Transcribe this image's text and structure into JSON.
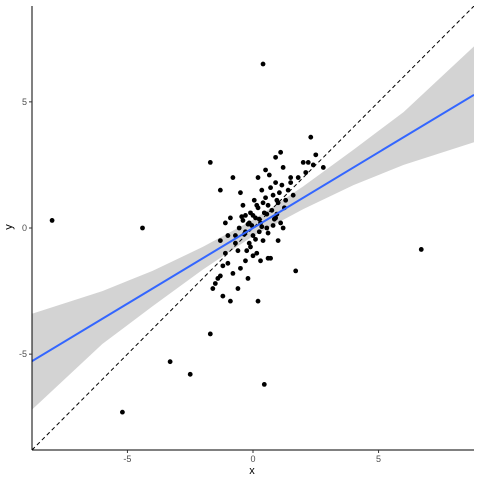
{
  "chart_data": {
    "type": "scatter",
    "xlabel": "x",
    "ylabel": "y",
    "xlim": [
      -8.8,
      8.8
    ],
    "ylim": [
      -8.8,
      8.8
    ],
    "x_ticks": [
      -5,
      0,
      5
    ],
    "y_ticks": [
      -5,
      0,
      5
    ],
    "x_tick_labels": [
      "-5",
      "0",
      "5"
    ],
    "y_tick_labels": [
      "-5",
      "0",
      "5"
    ],
    "grid": false,
    "legend": "none",
    "points": [
      [
        -8.0,
        0.3
      ],
      [
        -4.4,
        0.0
      ],
      [
        -5.2,
        -7.3
      ],
      [
        -3.3,
        -5.3
      ],
      [
        -2.5,
        -5.8
      ],
      [
        -1.7,
        -4.2
      ],
      [
        6.7,
        -0.85
      ],
      [
        0.4,
        6.5
      ],
      [
        0.45,
        -6.2
      ],
      [
        1.7,
        -1.7
      ],
      [
        -1.7,
        2.6
      ],
      [
        -1.3,
        1.5
      ],
      [
        -0.8,
        2.0
      ],
      [
        -0.5,
        1.4
      ],
      [
        -0.4,
        0.3
      ],
      [
        -0.35,
        -0.25
      ],
      [
        -0.3,
        0.5
      ],
      [
        -0.25,
        -0.9
      ],
      [
        -0.2,
        0.15
      ],
      [
        -0.15,
        -0.6
      ],
      [
        -0.1,
        0.6
      ],
      [
        -0.05,
        0.1
      ],
      [
        0.0,
        -0.3
      ],
      [
        0.05,
        1.1
      ],
      [
        0.1,
        0.4
      ],
      [
        0.15,
        -1.0
      ],
      [
        0.2,
        0.8
      ],
      [
        0.25,
        -0.15
      ],
      [
        0.3,
        0.2
      ],
      [
        0.35,
        1.5
      ],
      [
        0.4,
        -0.5
      ],
      [
        0.45,
        0.6
      ],
      [
        0.5,
        1.2
      ],
      [
        0.55,
        0.0
      ],
      [
        0.6,
        0.9
      ],
      [
        0.65,
        2.1
      ],
      [
        0.7,
        -1.2
      ],
      [
        0.75,
        0.7
      ],
      [
        0.8,
        1.3
      ],
      [
        0.85,
        0.35
      ],
      [
        0.9,
        1.8
      ],
      [
        0.95,
        0.55
      ],
      [
        1.0,
        1.0
      ],
      [
        1.05,
        1.4
      ],
      [
        1.1,
        0.2
      ],
      [
        1.15,
        1.7
      ],
      [
        1.2,
        2.4
      ],
      [
        1.25,
        0.8
      ],
      [
        1.3,
        1.1
      ],
      [
        1.4,
        1.5
      ],
      [
        1.5,
        2.0
      ],
      [
        1.6,
        1.3
      ],
      [
        1.1,
        3.0
      ],
      [
        0.9,
        2.8
      ],
      [
        0.5,
        2.3
      ],
      [
        0.2,
        2.0
      ],
      [
        0.7,
        1.6
      ],
      [
        2.0,
        2.6
      ],
      [
        2.1,
        2.2
      ],
      [
        2.2,
        2.6
      ],
      [
        2.3,
        3.6
      ],
      [
        2.4,
        2.5
      ],
      [
        2.5,
        2.9
      ],
      [
        2.8,
        2.4
      ],
      [
        -1.0,
        -0.3
      ],
      [
        -1.1,
        -1.0
      ],
      [
        -1.2,
        -1.5
      ],
      [
        -1.3,
        -0.5
      ],
      [
        -1.4,
        -2.0
      ],
      [
        -1.5,
        -2.2
      ],
      [
        -1.6,
        -2.4
      ],
      [
        -1.2,
        -2.7
      ],
      [
        -0.9,
        -2.9
      ],
      [
        -0.6,
        -2.4
      ],
      [
        -0.8,
        -1.8
      ],
      [
        -0.5,
        -1.6
      ],
      [
        -0.3,
        -1.3
      ],
      [
        -0.2,
        -2.0
      ],
      [
        0.0,
        -1.1
      ],
      [
        0.3,
        -1.3
      ],
      [
        0.2,
        -2.9
      ],
      [
        0.6,
        -1.2
      ],
      [
        1.0,
        -0.5
      ],
      [
        -0.6,
        -0.9
      ],
      [
        -0.7,
        -0.6
      ],
      [
        -0.9,
        0.4
      ],
      [
        -1.0,
        -1.4
      ],
      [
        -1.3,
        -1.9
      ],
      [
        -0.4,
        0.9
      ],
      [
        0.0,
        0.5
      ],
      [
        0.1,
        -0.45
      ],
      [
        -0.15,
        0.2
      ],
      [
        0.35,
        0.05
      ],
      [
        0.6,
        -0.2
      ],
      [
        0.8,
        0.1
      ],
      [
        -0.55,
        0.0
      ],
      [
        -0.7,
        -0.3
      ],
      [
        0.15,
        0.9
      ],
      [
        1.2,
        0.0
      ],
      [
        1.5,
        1.8
      ],
      [
        0.9,
        0.4
      ],
      [
        -0.3,
        -0.15
      ],
      [
        0.4,
        1.0
      ],
      [
        -0.1,
        -0.75
      ],
      [
        1.8,
        2.0
      ],
      [
        0.25,
        0.35
      ],
      [
        -0.45,
        0.45
      ],
      [
        0.55,
        0.55
      ],
      [
        -1.1,
        0.2
      ],
      [
        0.95,
        1.1
      ]
    ],
    "regression_line": {
      "intercept": 0.0,
      "slope": 0.6
    },
    "confidence_band": [
      {
        "x": -8.8,
        "lower": -7.2,
        "upper": -3.4
      },
      {
        "x": -6.0,
        "lower": -4.6,
        "upper": -2.5
      },
      {
        "x": -4.0,
        "lower": -3.1,
        "upper": -1.7
      },
      {
        "x": -2.0,
        "lower": -1.65,
        "upper": -0.75
      },
      {
        "x": 0.0,
        "lower": -0.32,
        "upper": 0.32
      },
      {
        "x": 2.0,
        "lower": 0.75,
        "upper": 1.65
      },
      {
        "x": 4.0,
        "lower": 1.7,
        "upper": 3.1
      },
      {
        "x": 6.0,
        "lower": 2.5,
        "upper": 4.6
      },
      {
        "x": 8.8,
        "lower": 3.4,
        "upper": 7.2
      }
    ],
    "reference_line": {
      "intercept": 0,
      "slope": 1,
      "style": "dashed"
    },
    "colors": {
      "points": "#000000",
      "regression_line": "#3366FF",
      "confidence_band": "#d3d3d3",
      "reference_line": "#000000",
      "axis": "#000000"
    }
  }
}
